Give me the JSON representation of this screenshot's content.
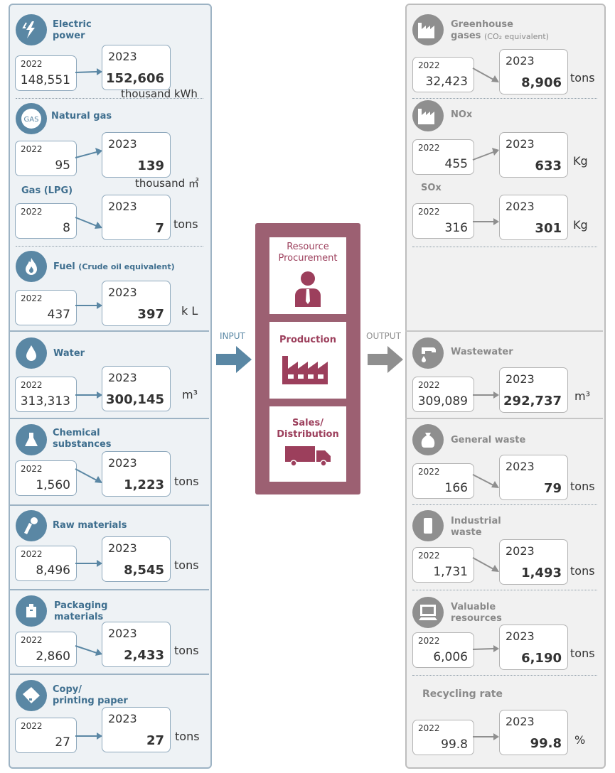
{
  "input": {
    "label": "INPUT",
    "items": [
      {
        "key": "electric",
        "title": "Electric\npower",
        "icon": "lightning-icon",
        "y2022": "2022",
        "v2022": "148,551",
        "y2023": "2023",
        "v2023": "152,606",
        "unit": "thousand kWh"
      },
      {
        "key": "natgas",
        "title": "Natural gas",
        "icon": "gas-icon",
        "y2022": "2022",
        "v2022": "95",
        "y2023": "2023",
        "v2023": "139",
        "unit": "thousand ㎥"
      },
      {
        "key": "lpg",
        "title": "Gas (LPG)",
        "y2022": "2022",
        "v2022": "8",
        "y2023": "2023",
        "v2023": "7",
        "unit": "tons"
      },
      {
        "key": "fuel",
        "title": "Fuel",
        "subtitle": "(Crude oil equivalent)",
        "icon": "flame-icon",
        "y2022": "2022",
        "v2022": "437",
        "y2023": "2023",
        "v2023": "397",
        "unit": "k L"
      },
      {
        "key": "water",
        "title": "Water",
        "icon": "water-drop-icon",
        "y2022": "2022",
        "v2022": "313,313",
        "y2023": "2023",
        "v2023": "300,145",
        "unit": "m³"
      },
      {
        "key": "chem",
        "title": "Chemical\nsubstances",
        "icon": "flask-icon",
        "y2022": "2022",
        "v2022": "1,560",
        "y2023": "2023",
        "v2023": "1,223",
        "unit": "tons"
      },
      {
        "key": "raw",
        "title": "Raw materials",
        "icon": "raw-materials-icon",
        "y2022": "2022",
        "v2022": "8,496",
        "y2023": "2023",
        "v2023": "8,545",
        "unit": "tons"
      },
      {
        "key": "pack",
        "title": "Packaging\nmaterials",
        "icon": "package-icon",
        "y2022": "2022",
        "v2022": "2,860",
        "y2023": "2023",
        "v2023": "2,433",
        "unit": "tons"
      },
      {
        "key": "paper",
        "title": "Copy/\nprinting paper",
        "icon": "paper-icon",
        "y2022": "2022",
        "v2022": "27",
        "y2023": "2023",
        "v2023": "27",
        "unit": "tons"
      }
    ]
  },
  "center": {
    "stages": [
      "Resource\nProcurement",
      "Production",
      "Sales/\nDistribution"
    ],
    "icons": [
      "person-icon",
      "factory-icon",
      "truck-icon"
    ]
  },
  "output": {
    "label": "OUTPUT",
    "items": [
      {
        "key": "ghg",
        "title": "Greenhouse\ngases",
        "subtitle": "(CO₂ equivalent)",
        "icon": "factory-icon",
        "y2022": "2022",
        "v2022": "32,423",
        "y2023": "2023",
        "v2023": "8,906",
        "unit": "tons"
      },
      {
        "key": "nox",
        "title": "NOx",
        "icon": "factory-icon",
        "y2022": "2022",
        "v2022": "455",
        "y2023": "2023",
        "v2023": "633",
        "unit": "Kg"
      },
      {
        "key": "sox",
        "title": "SOx",
        "y2022": "2022",
        "v2022": "316",
        "y2023": "2023",
        "v2023": "301",
        "unit": "Kg"
      },
      {
        "key": "wastewater",
        "title": "Wastewater",
        "icon": "faucet-icon",
        "y2022": "2022",
        "v2022": "309,089",
        "y2023": "2023",
        "v2023": "292,737",
        "unit": "m³"
      },
      {
        "key": "genwaste",
        "title": "General waste",
        "icon": "trash-bag-icon",
        "y2022": "2022",
        "v2022": "166",
        "y2023": "2023",
        "v2023": "79",
        "unit": "tons"
      },
      {
        "key": "indwaste",
        "title": "Industrial\nwaste",
        "icon": "drum-icon",
        "y2022": "2022",
        "v2022": "1,731",
        "y2023": "2023",
        "v2023": "1,493",
        "unit": "tons"
      },
      {
        "key": "valuable",
        "title": "Valuable\nresources",
        "icon": "computer-icon",
        "y2022": "2022",
        "v2022": "6,006",
        "y2023": "2023",
        "v2023": "6,190",
        "unit": "tons"
      },
      {
        "key": "recycle",
        "title": "Recycling rate",
        "y2022": "2022",
        "v2022": "99.8",
        "y2023": "2023",
        "v2023": "99.8",
        "unit": "%"
      }
    ]
  },
  "colors": {
    "input_accent": "#5a87a4",
    "output_accent": "#8f8f8f",
    "center": "#9c6072",
    "center_text": "#9c3f5c"
  }
}
